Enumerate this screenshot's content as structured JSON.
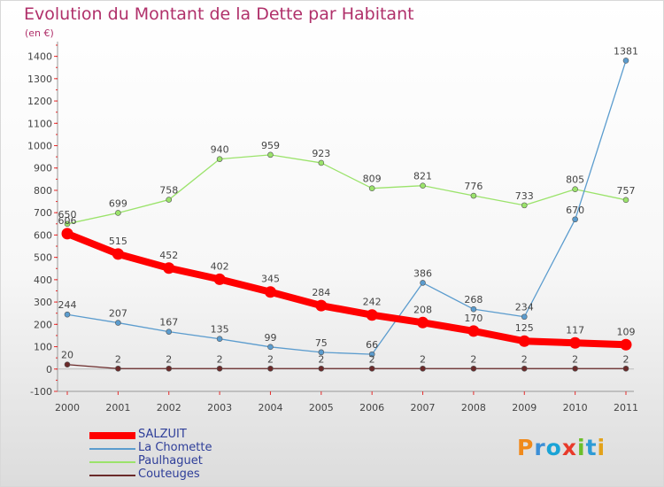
{
  "header": {
    "title": "Evolution du Montant de la Dette par Habitant",
    "subtitle": "(en €)"
  },
  "logo": {
    "text": "Proxiti",
    "colors": [
      "#f08a1c",
      "#3d8fd6",
      "#1aa3d6",
      "#e83a2a",
      "#6bbf2a",
      "#2e9bd6",
      "#e3a21a"
    ]
  },
  "colors": {
    "title": "#b0306a",
    "axis": "#999999",
    "tick_marks": "#e52b2b",
    "legend_text": "#2e3e99"
  },
  "chart_data": {
    "type": "line",
    "title": "Evolution du Montant de la Dette par Habitant",
    "subtitle": "(en €)",
    "xlabel": "",
    "ylabel": "",
    "x": [
      "2000",
      "2001",
      "2002",
      "2003",
      "2004",
      "2005",
      "2006",
      "2007",
      "2008",
      "2009",
      "2010",
      "2011"
    ],
    "ylim": [
      -100,
      1450
    ],
    "yticks": [
      -100,
      0,
      100,
      200,
      300,
      400,
      500,
      600,
      700,
      800,
      900,
      1000,
      1100,
      1200,
      1300,
      1400
    ],
    "grid": false,
    "legend_position": "bottom-left",
    "series": [
      {
        "name": "SALZUIT",
        "color": "#ff0000",
        "values": [
          606,
          515,
          452,
          402,
          345,
          284,
          242,
          208,
          170,
          125,
          117,
          109
        ],
        "labels": [
          "606",
          "515",
          "452",
          "402",
          "345",
          "284",
          "242",
          "208",
          "170",
          "125",
          "117",
          "109"
        ],
        "label_side": "above"
      },
      {
        "name": "La Chomette",
        "color": "#5b9cce",
        "values": [
          244,
          207,
          167,
          135,
          99,
          75,
          66,
          386,
          268,
          234,
          670,
          1381
        ],
        "labels": [
          "244",
          "207",
          "167",
          "135",
          "99",
          "75",
          "66",
          "386",
          "268",
          "234",
          "670",
          "1381"
        ],
        "label_side": "above"
      },
      {
        "name": "Paulhaguet",
        "color": "#9be36b",
        "values": [
          650,
          699,
          758,
          940,
          959,
          923,
          809,
          821,
          776,
          733,
          805,
          757
        ],
        "labels": [
          "650",
          "699",
          "758",
          "940",
          "959",
          "923",
          "809",
          "821",
          "776",
          "733",
          "805",
          "757"
        ],
        "label_side": "above"
      },
      {
        "name": "Couteuges",
        "color": "#6b2a2a",
        "values": [
          20,
          2,
          2,
          2,
          2,
          2,
          2,
          2,
          2,
          2,
          2,
          2
        ],
        "labels": [
          "20",
          "2",
          "2",
          "2",
          "2",
          "2",
          "2",
          "2",
          "2",
          "2",
          "2",
          "2"
        ],
        "label_side": "above"
      }
    ]
  }
}
